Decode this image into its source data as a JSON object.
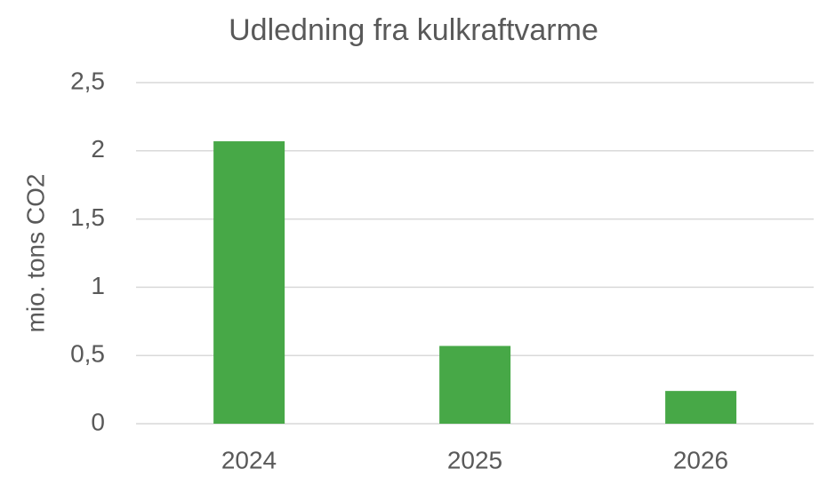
{
  "chart_data": {
    "type": "bar",
    "title": "Udledning fra kulkraftvarme",
    "y_label": "mio. tons CO2",
    "categories": [
      "2024",
      "2025",
      "2026"
    ],
    "values": [
      2.07,
      0.57,
      0.24
    ],
    "color": "#47a847",
    "ylim": [
      0,
      2.5
    ],
    "yticks": [
      0,
      {
        "value": 0.5,
        "label": "0,5"
      },
      1,
      {
        "value": 1.5,
        "label": "1,5"
      },
      2,
      {
        "value": 2.5,
        "label": "2,5"
      }
    ],
    "grid": true
  }
}
